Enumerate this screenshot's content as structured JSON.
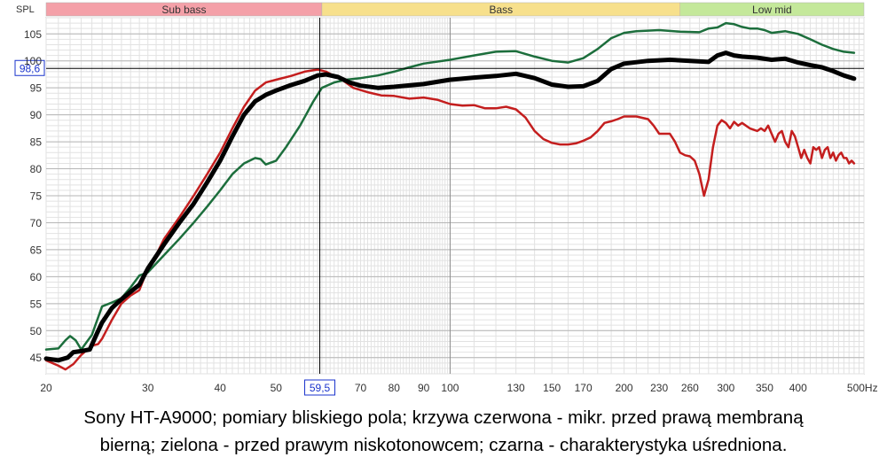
{
  "chart_data": {
    "type": "line",
    "ylabel": "SPL",
    "xunit": "Hz",
    "xscale": "log",
    "xlim": [
      20,
      520
    ],
    "ylim": [
      42,
      108
    ],
    "grid": true,
    "x_tick_labels": [
      {
        "x": 20,
        "label": "20"
      },
      {
        "x": 30,
        "label": "30"
      },
      {
        "x": 40,
        "label": "40"
      },
      {
        "x": 50,
        "label": "50"
      },
      {
        "x": 70,
        "label": "70"
      },
      {
        "x": 80,
        "label": "80"
      },
      {
        "x": 90,
        "label": "90"
      },
      {
        "x": 100,
        "label": "100"
      },
      {
        "x": 130,
        "label": "130"
      },
      {
        "x": 150,
        "label": "150"
      },
      {
        "x": 170,
        "label": "170"
      },
      {
        "x": 200,
        "label": "200"
      },
      {
        "x": 230,
        "label": "230"
      },
      {
        "x": 260,
        "label": "260"
      },
      {
        "x": 300,
        "label": "300"
      },
      {
        "x": 350,
        "label": "350"
      },
      {
        "x": 400,
        "label": "400"
      },
      {
        "x": 500,
        "label": "500Hz"
      }
    ],
    "y_ticks": [
      45,
      50,
      55,
      60,
      65,
      70,
      75,
      80,
      85,
      90,
      95,
      100,
      105
    ],
    "bands": [
      {
        "label": "Sub bass",
        "from": 20,
        "to": 60,
        "color": "#f4a0a8"
      },
      {
        "label": "Bass",
        "from": 60,
        "to": 250,
        "color": "#f7e08c"
      },
      {
        "label": "Low mid",
        "from": 250,
        "to": 520,
        "color": "#c4e89a"
      }
    ],
    "cursor": {
      "x": 59.5,
      "y": 98.6,
      "x_label": "59,5",
      "y_label": "98,6"
    },
    "series": [
      {
        "color": "#c41e1e",
        "width": 2.5,
        "points": [
          [
            20,
            44.5
          ],
          [
            21,
            43.5
          ],
          [
            21.6,
            42.8
          ],
          [
            22.3,
            43.8
          ],
          [
            23,
            45.5
          ],
          [
            24,
            47.2
          ],
          [
            24.6,
            47.5
          ],
          [
            25,
            48.5
          ],
          [
            26,
            52
          ],
          [
            27,
            55
          ],
          [
            28,
            56.5
          ],
          [
            29,
            57.5
          ],
          [
            30,
            61.5
          ],
          [
            31,
            64
          ],
          [
            32,
            67
          ],
          [
            34,
            71
          ],
          [
            36,
            75
          ],
          [
            38,
            79
          ],
          [
            40,
            83
          ],
          [
            42,
            87.5
          ],
          [
            44,
            91.5
          ],
          [
            46,
            94.5
          ],
          [
            48,
            96
          ],
          [
            50,
            96.5
          ],
          [
            53,
            97.2
          ],
          [
            56,
            98
          ],
          [
            59,
            98.4
          ],
          [
            61,
            98
          ],
          [
            63,
            97.2
          ],
          [
            65,
            96.5
          ],
          [
            68,
            95
          ],
          [
            72,
            94.2
          ],
          [
            76,
            93.6
          ],
          [
            80,
            93.5
          ],
          [
            85,
            93
          ],
          [
            90,
            93.2
          ],
          [
            95,
            92.8
          ],
          [
            100,
            92
          ],
          [
            105,
            91.7
          ],
          [
            110,
            91.8
          ],
          [
            115,
            91.2
          ],
          [
            120,
            91.2
          ],
          [
            125,
            91.5
          ],
          [
            130,
            91
          ],
          [
            135,
            89.5
          ],
          [
            140,
            87
          ],
          [
            145,
            85.5
          ],
          [
            150,
            84.8
          ],
          [
            155,
            84.5
          ],
          [
            160,
            84.5
          ],
          [
            165,
            84.7
          ],
          [
            170,
            85.2
          ],
          [
            175,
            85.8
          ],
          [
            180,
            87
          ],
          [
            185,
            88.5
          ],
          [
            190,
            88.8
          ],
          [
            195,
            89.2
          ],
          [
            200,
            89.7
          ],
          [
            210,
            89.7
          ],
          [
            220,
            89.2
          ],
          [
            225,
            88
          ],
          [
            230,
            86.5
          ],
          [
            240,
            86.5
          ],
          [
            245,
            85
          ],
          [
            250,
            83
          ],
          [
            255,
            82.5
          ],
          [
            260,
            82.3
          ],
          [
            265,
            81.5
          ],
          [
            270,
            79
          ],
          [
            275,
            75
          ],
          [
            280,
            78
          ],
          [
            285,
            84
          ],
          [
            290,
            88
          ],
          [
            295,
            89
          ],
          [
            300,
            88.5
          ],
          [
            305,
            87.5
          ],
          [
            310,
            88.7
          ],
          [
            315,
            88
          ],
          [
            320,
            88.5
          ],
          [
            330,
            87.5
          ],
          [
            340,
            87
          ],
          [
            345,
            87.5
          ],
          [
            350,
            87
          ],
          [
            355,
            88
          ],
          [
            360,
            86.5
          ],
          [
            365,
            85
          ],
          [
            370,
            86.5
          ],
          [
            375,
            87
          ],
          [
            380,
            85
          ],
          [
            385,
            84
          ],
          [
            390,
            87
          ],
          [
            395,
            86
          ],
          [
            400,
            84
          ],
          [
            405,
            82
          ],
          [
            410,
            83.5
          ],
          [
            415,
            82
          ],
          [
            420,
            81
          ],
          [
            425,
            84
          ],
          [
            430,
            83.5
          ],
          [
            435,
            84
          ],
          [
            440,
            82
          ],
          [
            445,
            83.5
          ],
          [
            450,
            84
          ],
          [
            455,
            82
          ],
          [
            460,
            83
          ],
          [
            465,
            81.5
          ],
          [
            470,
            82.5
          ],
          [
            475,
            83
          ],
          [
            480,
            82
          ],
          [
            485,
            82
          ],
          [
            490,
            81
          ],
          [
            495,
            81.5
          ],
          [
            500,
            81
          ]
        ]
      },
      {
        "color": "#1c6e3c",
        "width": 2.5,
        "points": [
          [
            20,
            46.5
          ],
          [
            21,
            46.7
          ],
          [
            21.6,
            48.2
          ],
          [
            22,
            49
          ],
          [
            22.5,
            48.2
          ],
          [
            23,
            46.5
          ],
          [
            24,
            49.2
          ],
          [
            25,
            54.5
          ],
          [
            26,
            55.2
          ],
          [
            27,
            56
          ],
          [
            28,
            58
          ],
          [
            29,
            60.2
          ],
          [
            30,
            60.8
          ],
          [
            32,
            64
          ],
          [
            34,
            67
          ],
          [
            36,
            70
          ],
          [
            38,
            73
          ],
          [
            40,
            76
          ],
          [
            42,
            79
          ],
          [
            44,
            81
          ],
          [
            46,
            82
          ],
          [
            47,
            81.8
          ],
          [
            48,
            80.8
          ],
          [
            50,
            81.5
          ],
          [
            52,
            84
          ],
          [
            55,
            88
          ],
          [
            58,
            92.5
          ],
          [
            60,
            95
          ],
          [
            63,
            96
          ],
          [
            66,
            96.5
          ],
          [
            70,
            96.8
          ],
          [
            75,
            97.3
          ],
          [
            80,
            98
          ],
          [
            85,
            98.8
          ],
          [
            90,
            99.5
          ],
          [
            100,
            100.2
          ],
          [
            110,
            101
          ],
          [
            120,
            101.7
          ],
          [
            130,
            101.8
          ],
          [
            140,
            100.8
          ],
          [
            150,
            100
          ],
          [
            160,
            99.7
          ],
          [
            170,
            100.5
          ],
          [
            180,
            102.2
          ],
          [
            190,
            104.2
          ],
          [
            200,
            105.2
          ],
          [
            210,
            105.5
          ],
          [
            230,
            105.7
          ],
          [
            250,
            105.4
          ],
          [
            270,
            105.3
          ],
          [
            280,
            106
          ],
          [
            290,
            106.2
          ],
          [
            300,
            107
          ],
          [
            310,
            106.8
          ],
          [
            320,
            106.3
          ],
          [
            330,
            106
          ],
          [
            340,
            106
          ],
          [
            350,
            105.7
          ],
          [
            360,
            105.2
          ],
          [
            380,
            105.5
          ],
          [
            400,
            105
          ],
          [
            420,
            104
          ],
          [
            440,
            103
          ],
          [
            460,
            102.2
          ],
          [
            480,
            101.7
          ],
          [
            500,
            101.5
          ]
        ]
      },
      {
        "color": "#000000",
        "width": 5,
        "points": [
          [
            20,
            44.8
          ],
          [
            21,
            44.5
          ],
          [
            21.8,
            45
          ],
          [
            22.3,
            46
          ],
          [
            23,
            46.2
          ],
          [
            23.8,
            46.5
          ],
          [
            24.5,
            49.5
          ],
          [
            25,
            51.5
          ],
          [
            26,
            54.2
          ],
          [
            27,
            55.8
          ],
          [
            28,
            57.2
          ],
          [
            29,
            58.5
          ],
          [
            30,
            61.5
          ],
          [
            32,
            66
          ],
          [
            34,
            70
          ],
          [
            36,
            73.5
          ],
          [
            38,
            77.5
          ],
          [
            40,
            81.5
          ],
          [
            42,
            86
          ],
          [
            44,
            90
          ],
          [
            46,
            92.5
          ],
          [
            48,
            93.7
          ],
          [
            50,
            94.5
          ],
          [
            53,
            95.5
          ],
          [
            56,
            96.3
          ],
          [
            59,
            97.3
          ],
          [
            61,
            97.5
          ],
          [
            64,
            97
          ],
          [
            67,
            96
          ],
          [
            70,
            95.4
          ],
          [
            75,
            95
          ],
          [
            80,
            95.2
          ],
          [
            90,
            95.7
          ],
          [
            100,
            96.5
          ],
          [
            110,
            96.9
          ],
          [
            120,
            97.2
          ],
          [
            130,
            97.6
          ],
          [
            140,
            96.8
          ],
          [
            150,
            95.6
          ],
          [
            160,
            95.2
          ],
          [
            170,
            95.3
          ],
          [
            180,
            96.3
          ],
          [
            190,
            98.5
          ],
          [
            200,
            99.5
          ],
          [
            220,
            100
          ],
          [
            240,
            100.2
          ],
          [
            260,
            100
          ],
          [
            280,
            99.8
          ],
          [
            290,
            101
          ],
          [
            300,
            101.5
          ],
          [
            310,
            101
          ],
          [
            320,
            100.8
          ],
          [
            340,
            100.6
          ],
          [
            360,
            100.2
          ],
          [
            380,
            100.4
          ],
          [
            400,
            99.7
          ],
          [
            420,
            99.2
          ],
          [
            440,
            98.8
          ],
          [
            460,
            98.1
          ],
          [
            480,
            97.3
          ],
          [
            500,
            96.7
          ]
        ]
      }
    ]
  },
  "caption": {
    "line1": "Sony HT-A9000; pomiary bliskiego pola; krzywa czerwona - mikr. przed prawą membraną",
    "line2": "bierną; zielona - przed prawym niskotonowcem; czarna - charakterystyka uśredniona."
  }
}
